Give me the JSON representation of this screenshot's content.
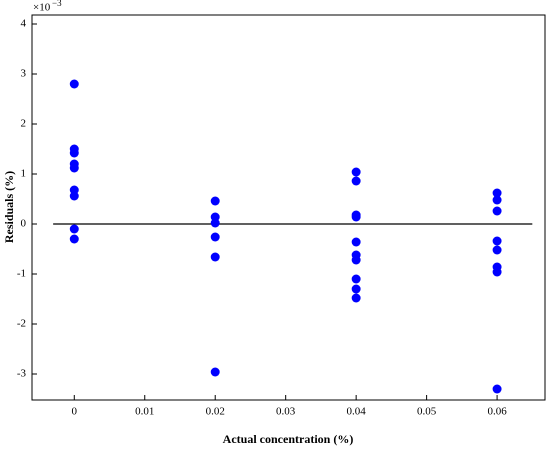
{
  "chart_data": {
    "type": "scatter",
    "xlabel": "Actual concentration (%)",
    "ylabel": "Residuals (%)",
    "y_multiplier": "×10",
    "y_multiplier_exponent": "−3",
    "series": [
      {
        "color": "#0000ff",
        "x": [
          0,
          0,
          0,
          0,
          0,
          0,
          0,
          0,
          0,
          0.02,
          0.02,
          0.02,
          0.02,
          0.02,
          0.02,
          0.04,
          0.04,
          0.04,
          0.04,
          0.04,
          0.04,
          0.04,
          0.04,
          0.04,
          0.04,
          0.06,
          0.06,
          0.06,
          0.06,
          0.06,
          0.06,
          0.06,
          0.06
        ],
        "values": [
          2.8,
          1.5,
          1.42,
          1.2,
          1.12,
          0.68,
          0.56,
          -0.1,
          -0.3,
          0.46,
          0.14,
          0.02,
          -0.26,
          -0.66,
          -2.96,
          1.04,
          0.86,
          0.18,
          0.14,
          -0.36,
          -0.62,
          -0.72,
          -1.1,
          -1.3,
          -1.48,
          0.62,
          0.48,
          0.26,
          -0.34,
          -0.52,
          -0.86,
          -0.96,
          -3.3
        ]
      }
    ],
    "hline": {
      "y": 0,
      "xrange": [
        -0.003,
        0.065
      ]
    },
    "xlim": [
      -0.006,
      0.0668
    ],
    "ylim": [
      -3.52,
      4.18
    ],
    "xticks": [
      0,
      0.01,
      0.02,
      0.03,
      0.04,
      0.05,
      0.06
    ],
    "yticks": [
      -3,
      -2,
      -1,
      0,
      1,
      2,
      3,
      4
    ]
  }
}
